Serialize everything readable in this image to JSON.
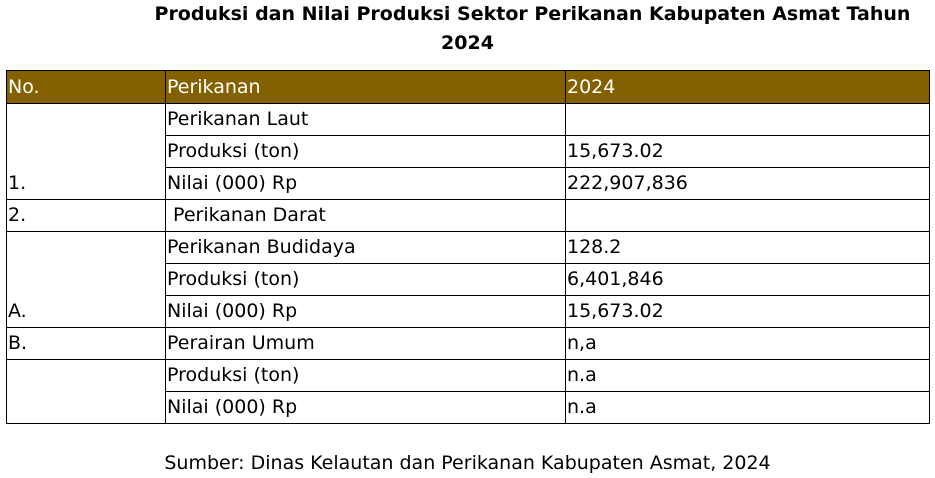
{
  "title": {
    "line1": "Produksi dan Nilai Produksi Sektor Perikanan Kabupaten Asmat Tahun",
    "line2": "2024"
  },
  "table": {
    "headers": {
      "no": "No.",
      "perikanan": "Perikanan",
      "year": "2024"
    },
    "rows": [
      {
        "no": "",
        "item": "Perikanan Laut",
        "value": ""
      },
      {
        "no": "",
        "item": "Produksi (ton)",
        "value": "15,673.02"
      },
      {
        "no": "1.",
        "item": "Nilai (000) Rp",
        "value": "222,907,836"
      },
      {
        "no": "2.",
        "item": " Perikanan Darat",
        "value": ""
      },
      {
        "no": "",
        "item": "Perikanan Budidaya",
        "value": "128.2"
      },
      {
        "no": "",
        "item": "Produksi (ton)",
        "value": "6,401,846"
      },
      {
        "no": "A.",
        "item": "Nilai (000) Rp",
        "value": "15,673.02"
      },
      {
        "no": "B.",
        "item": "Perairan Umum",
        "value": "n,a"
      },
      {
        "no": "",
        "item": "Produksi (ton)",
        "value": "n.a"
      },
      {
        "no": "",
        "item": "Nilai (000) Rp",
        "value": "n.a"
      }
    ]
  },
  "footer": {
    "source": "Sumber: Dinas Kelautan dan Perikanan Kabupaten Asmat, 2024"
  },
  "colors": {
    "header_background": "#836000",
    "header_text": "#ffffff"
  }
}
